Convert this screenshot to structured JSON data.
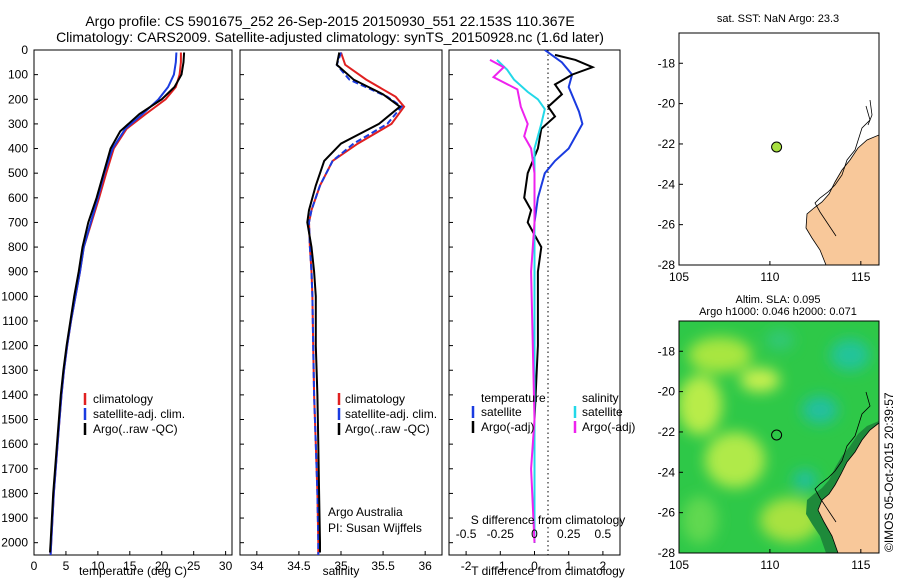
{
  "title_line1": "Argo profile: CS 5901675_252 26-Sep-2015 20150930_551 22.153S 110.367E",
  "title_line2": "Climatology: CARS2009. Satellite-adjusted climatology: synTS_20150928.nc (1.6d later)",
  "credit_footer": "©IMOS 05-Oct-2015 20:39:57",
  "colors": {
    "climatology": "#e02020",
    "satellite": "#1a3be0",
    "argo": "#000000",
    "sat_salinity": "#22d8e8",
    "argo_salinity": "#ee22ee",
    "land": "#f8c89a",
    "float_marker": "#a8e040"
  },
  "chart_data": [
    {
      "type": "line",
      "xlabel": "temperature (deg C)",
      "xlim": [
        0,
        31
      ],
      "ylim": [
        2050,
        0
      ],
      "xticks": [
        "0",
        "5",
        "10",
        "15",
        "20",
        "25",
        "30"
      ],
      "yticks": [
        "0",
        "100",
        "200",
        "300",
        "400",
        "500",
        "600",
        "700",
        "800",
        "900",
        "1000",
        "1100",
        "1200",
        "1300",
        "1400",
        "1500",
        "1600",
        "1700",
        "1800",
        "1900",
        "2000"
      ],
      "legend": [
        "climatology",
        "satellite-adj. clim.",
        "Argo(..raw -QC)"
      ],
      "series": [
        {
          "name": "climatology",
          "points": [
            [
              23.0,
              10
            ],
            [
              23.0,
              50
            ],
            [
              22.8,
              100
            ],
            [
              22.2,
              150
            ],
            [
              20.6,
              200
            ],
            [
              17.5,
              260
            ],
            [
              14.5,
              320
            ],
            [
              12.5,
              400
            ],
            [
              11.3,
              500
            ],
            [
              10.2,
              600
            ],
            [
              9.0,
              700
            ],
            [
              7.8,
              800
            ],
            [
              7.2,
              900
            ],
            [
              6.5,
              1000
            ],
            [
              5.8,
              1100
            ],
            [
              5.2,
              1200
            ],
            [
              4.7,
              1300
            ],
            [
              4.3,
              1400
            ],
            [
              4.0,
              1500
            ],
            [
              3.7,
              1600
            ],
            [
              3.4,
              1700
            ],
            [
              3.1,
              1800
            ],
            [
              2.9,
              1900
            ],
            [
              2.7,
              2000
            ],
            [
              2.6,
              2050
            ]
          ]
        },
        {
          "name": "satellite-adj. clim.",
          "points": [
            [
              22.3,
              10
            ],
            [
              22.2,
              50
            ],
            [
              21.9,
              100
            ],
            [
              21.0,
              150
            ],
            [
              19.5,
              200
            ],
            [
              17.0,
              260
            ],
            [
              14.3,
              320
            ],
            [
              12.3,
              400
            ],
            [
              11.0,
              500
            ],
            [
              10.0,
              600
            ],
            [
              8.9,
              700
            ],
            [
              7.8,
              800
            ],
            [
              7.2,
              900
            ],
            [
              6.5,
              1000
            ],
            [
              5.8,
              1100
            ],
            [
              5.2,
              1200
            ],
            [
              4.7,
              1300
            ],
            [
              4.3,
              1400
            ],
            [
              4.0,
              1500
            ],
            [
              3.7,
              1600
            ],
            [
              3.4,
              1700
            ],
            [
              3.1,
              1800
            ],
            [
              2.9,
              1900
            ],
            [
              2.7,
              2000
            ],
            [
              2.6,
              2050
            ]
          ]
        },
        {
          "name": "Argo(..raw -QC)",
          "points": [
            [
              23.5,
              10
            ],
            [
              23.4,
              50
            ],
            [
              23.1,
              100
            ],
            [
              22.0,
              150
            ],
            [
              20.0,
              200
            ],
            [
              16.5,
              260
            ],
            [
              13.5,
              330
            ],
            [
              12.0,
              400
            ],
            [
              10.9,
              500
            ],
            [
              9.8,
              600
            ],
            [
              8.5,
              700
            ],
            [
              7.6,
              800
            ],
            [
              7.0,
              900
            ],
            [
              6.3,
              1000
            ],
            [
              5.7,
              1100
            ],
            [
              5.1,
              1200
            ],
            [
              4.6,
              1300
            ],
            [
              4.2,
              1400
            ],
            [
              3.9,
              1500
            ],
            [
              3.6,
              1600
            ],
            [
              3.3,
              1700
            ],
            [
              3.0,
              1800
            ],
            [
              2.8,
              1900
            ],
            [
              2.6,
              2000
            ],
            [
              2.5,
              2040
            ]
          ]
        }
      ]
    },
    {
      "type": "line",
      "xlabel": "salinity",
      "xlim": [
        33.8,
        36.2
      ],
      "ylim": [
        2050,
        0
      ],
      "xticks": [
        "34",
        "34.5",
        "35",
        "35.5",
        "36"
      ],
      "legend": [
        "climatology",
        "satellite-adj. clim.",
        "Argo(..raw -QC)"
      ],
      "annotation_line1": "Argo Australia",
      "annotation_line2": "PI: Susan Wijffels",
      "series": [
        {
          "name": "climatology",
          "points": [
            [
              35.0,
              10
            ],
            [
              35.05,
              60
            ],
            [
              35.3,
              120
            ],
            [
              35.65,
              190
            ],
            [
              35.75,
              230
            ],
            [
              35.6,
              300
            ],
            [
              35.2,
              380
            ],
            [
              34.9,
              450
            ],
            [
              34.75,
              550
            ],
            [
              34.65,
              650
            ],
            [
              34.62,
              700
            ],
            [
              34.63,
              800
            ],
            [
              34.65,
              900
            ],
            [
              34.66,
              1000
            ],
            [
              34.67,
              1200
            ],
            [
              34.68,
              1400
            ],
            [
              34.7,
              1600
            ],
            [
              34.72,
              1800
            ],
            [
              34.73,
              2000
            ],
            [
              34.73,
              2050
            ]
          ]
        },
        {
          "name": "satellite-adj. clim.",
          "points": [
            [
              35.0,
              10
            ],
            [
              34.95,
              60
            ],
            [
              35.1,
              120
            ],
            [
              35.55,
              190
            ],
            [
              35.72,
              230
            ],
            [
              35.55,
              300
            ],
            [
              35.15,
              380
            ],
            [
              34.9,
              450
            ],
            [
              34.75,
              550
            ],
            [
              34.65,
              650
            ],
            [
              34.62,
              700
            ],
            [
              34.63,
              800
            ],
            [
              34.65,
              900
            ],
            [
              34.66,
              1000
            ],
            [
              34.67,
              1200
            ],
            [
              34.68,
              1400
            ],
            [
              34.7,
              1600
            ],
            [
              34.72,
              1800
            ],
            [
              34.73,
              2000
            ],
            [
              34.73,
              2050
            ]
          ]
        },
        {
          "name": "Argo(..raw -QC)",
          "points": [
            [
              34.98,
              10
            ],
            [
              34.95,
              60
            ],
            [
              35.15,
              120
            ],
            [
              35.5,
              180
            ],
            [
              35.7,
              230
            ],
            [
              35.45,
              300
            ],
            [
              35.0,
              380
            ],
            [
              34.8,
              450
            ],
            [
              34.7,
              550
            ],
            [
              34.62,
              650
            ],
            [
              34.6,
              700
            ],
            [
              34.65,
              800
            ],
            [
              34.68,
              900
            ],
            [
              34.7,
              1000
            ],
            [
              34.7,
              1200
            ],
            [
              34.72,
              1400
            ],
            [
              34.73,
              1600
            ],
            [
              34.74,
              1800
            ],
            [
              34.75,
              2000
            ],
            [
              34.75,
              2040
            ]
          ]
        }
      ]
    },
    {
      "type": "line",
      "xlabel_top": "S difference from climatology",
      "xlabel": "T difference from climatology",
      "xlim": [
        -2.5,
        2.5
      ],
      "ylim": [
        2050,
        0
      ],
      "xticks": [
        "-2",
        "-1",
        "0",
        "1",
        "2"
      ],
      "xticks_s": [
        "-0.5",
        "-0.25",
        "0",
        "0.25",
        "0.5"
      ],
      "legend_temperature": [
        "temperature",
        "satellite",
        "Argo(-adj)"
      ],
      "legend_salinity": [
        "salinity",
        "satellite",
        "Argo(-adj)"
      ],
      "series": [
        {
          "name": "satellite",
          "points": [
            [
              0.3,
              0
            ],
            [
              0.8,
              50
            ],
            [
              1.1,
              100
            ],
            [
              1.0,
              150
            ],
            [
              1.3,
              250
            ],
            [
              1.4,
              300
            ],
            [
              1.0,
              400
            ],
            [
              0.6,
              450
            ],
            [
              0.3,
              500
            ],
            [
              0.1,
              600
            ],
            [
              0.0,
              700
            ],
            [
              0.0,
              900
            ],
            [
              0.0,
              1200
            ],
            [
              0.0,
              2000
            ]
          ]
        },
        {
          "name": "Argo(-adj)",
          "points": [
            [
              0.6,
              20
            ],
            [
              1.2,
              40
            ],
            [
              1.7,
              70
            ],
            [
              1.1,
              100
            ],
            [
              0.6,
              140
            ],
            [
              0.8,
              180
            ],
            [
              0.4,
              230
            ],
            [
              0.6,
              270
            ],
            [
              0.2,
              320
            ],
            [
              0.1,
              400
            ],
            [
              -0.2,
              500
            ],
            [
              -0.3,
              600
            ],
            [
              -0.1,
              650
            ],
            [
              -0.2,
              700
            ],
            [
              0.2,
              800
            ],
            [
              0.1,
              900
            ],
            [
              0.1,
              1000
            ],
            [
              0.1,
              1200
            ],
            [
              0.0,
              1500
            ],
            [
              0.0,
              1800
            ],
            [
              0.0,
              2000
            ]
          ]
        },
        {
          "name": "salinity satellite",
          "points": [
            [
              -1.1,
              40
            ],
            [
              -0.8,
              80
            ],
            [
              -0.6,
              120
            ],
            [
              -0.2,
              170
            ],
            [
              0.1,
              200
            ],
            [
              0.3,
              240
            ],
            [
              0.2,
              300
            ],
            [
              0.0,
              400
            ],
            [
              0.0,
              500
            ],
            [
              0.0,
              700
            ],
            [
              0.0,
              1000
            ],
            [
              0.0,
              2000
            ]
          ]
        },
        {
          "name": "salinity Argo(-adj)",
          "points": [
            [
              -1.3,
              40
            ],
            [
              -0.9,
              70
            ],
            [
              -1.2,
              110
            ],
            [
              -0.5,
              160
            ],
            [
              -0.4,
              230
            ],
            [
              -0.2,
              300
            ],
            [
              -0.3,
              350
            ],
            [
              -0.1,
              400
            ],
            [
              0.0,
              500
            ],
            [
              0.0,
              700
            ],
            [
              -0.1,
              900
            ],
            [
              -0.05,
              1200
            ],
            [
              0.0,
              1500
            ],
            [
              -0.1,
              1700
            ],
            [
              0.0,
              2000
            ]
          ]
        }
      ]
    },
    {
      "type": "scatter",
      "title": "sat. SST: NaN Argo: 23.3",
      "xlim": [
        105,
        116
      ],
      "ylim": [
        -28,
        -16.5
      ],
      "xticks": [
        "105",
        "110",
        "115"
      ],
      "yticks": [
        "-18",
        "-20",
        "-22",
        "-24",
        "-26",
        "-28"
      ],
      "points": [
        [
          110.367,
          -22.153
        ]
      ]
    },
    {
      "type": "heatmap",
      "title_line1": "Altim. SLA: 0.095",
      "title_line2": "Argo h1000: 0.046 h2000: 0.071",
      "xlim": [
        105,
        116
      ],
      "ylim": [
        -28,
        -16.5
      ],
      "xticks": [
        "105",
        "110",
        "115"
      ],
      "yticks": [
        "-18",
        "-20",
        "-22",
        "-24",
        "-26",
        "-28"
      ],
      "points": [
        [
          110.367,
          -22.153
        ]
      ]
    }
  ]
}
